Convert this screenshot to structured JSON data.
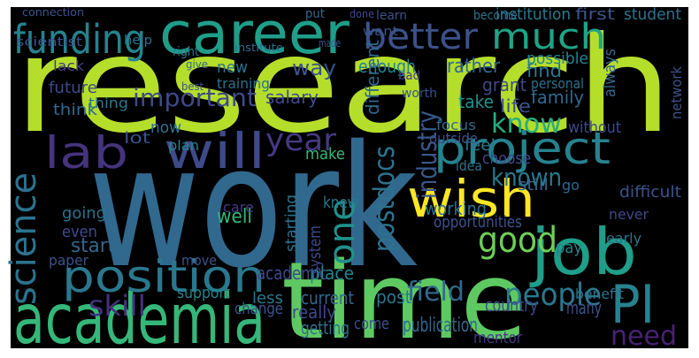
{
  "words": [
    {
      "text": "research",
      "color": "#b5de2b"
    },
    {
      "text": "work",
      "color": "#31688e"
    },
    {
      "text": "time",
      "color": "#5ec962"
    },
    {
      "text": "academia",
      "color": "#35b779"
    },
    {
      "text": "career",
      "color": "#1f9e89"
    },
    {
      "text": "funding",
      "color": "#25838e"
    },
    {
      "text": "project",
      "color": "#26828e"
    },
    {
      "text": "job",
      "color": "#1f9e89"
    },
    {
      "text": "wish",
      "color": "#fde725"
    },
    {
      "text": "will",
      "color": "#3e4a89"
    },
    {
      "text": "lab",
      "color": "#46337e"
    },
    {
      "text": "position",
      "color": "#2a788e"
    },
    {
      "text": "good",
      "color": "#6ece58"
    },
    {
      "text": "PI",
      "color": "#26828e"
    },
    {
      "text": "science",
      "color": "#2c728e"
    },
    {
      "text": "one",
      "color": "#21918c"
    },
    {
      "text": "better",
      "color": "#3b528b"
    },
    {
      "text": "much",
      "color": "#20a486"
    },
    {
      "text": "year",
      "color": "#443983"
    },
    {
      "text": "know",
      "color": "#27ad81"
    },
    {
      "text": "industry",
      "color": "#38588c"
    },
    {
      "text": "postdocs",
      "color": "#2c728e"
    },
    {
      "text": "people",
      "color": "#2a788e"
    },
    {
      "text": "field",
      "color": "#31688e"
    },
    {
      "text": "skill",
      "color": "#46307e"
    },
    {
      "text": "need",
      "color": "#482173"
    },
    {
      "text": "important",
      "color": "#3e4989"
    },
    {
      "text": "known",
      "color": "#2a788e"
    },
    {
      "text": "make",
      "color": "#35b779"
    },
    {
      "text": "want",
      "color": "#3b528b"
    },
    {
      "text": "scientist",
      "color": "#3b528b"
    },
    {
      "text": "help",
      "color": "#2c728e"
    },
    {
      "text": "lack",
      "color": "#443983"
    },
    {
      "text": "future",
      "color": "#3e4989"
    },
    {
      "text": "think",
      "color": "#31688e"
    },
    {
      "text": "thing",
      "color": "#2a788e"
    },
    {
      "text": "salary",
      "color": "#3e4989"
    },
    {
      "text": "new",
      "color": "#2c728e"
    },
    {
      "text": "way",
      "color": "#3b528b"
    },
    {
      "text": "enough",
      "color": "#25838e"
    },
    {
      "text": "rather",
      "color": "#31688e"
    },
    {
      "text": "find",
      "color": "#2a788e"
    },
    {
      "text": "grant",
      "color": "#3e4989"
    },
    {
      "text": "personal",
      "color": "#2c728e"
    },
    {
      "text": "family",
      "color": "#31688e"
    },
    {
      "text": "take",
      "color": "#21918c"
    },
    {
      "text": "life",
      "color": "#3b528b"
    },
    {
      "text": "institution",
      "color": "#2a788e"
    },
    {
      "text": "first",
      "color": "#3b528b"
    },
    {
      "text": "student",
      "color": "#2c728e"
    },
    {
      "text": "possible",
      "color": "#25838e"
    },
    {
      "text": "now",
      "color": "#2c728e"
    },
    {
      "text": "lot",
      "color": "#3b528b"
    },
    {
      "text": "plan",
      "color": "#25838e"
    },
    {
      "text": "even",
      "color": "#3e4989"
    },
    {
      "text": "going",
      "color": "#2c728e"
    },
    {
      "text": "start",
      "color": "#31688e"
    },
    {
      "text": "paper",
      "color": "#3b528b"
    },
    {
      "text": "support",
      "color": "#25838e"
    },
    {
      "text": "move",
      "color": "#3b528b"
    },
    {
      "text": "well",
      "color": "#35b779"
    },
    {
      "text": "care",
      "color": "#443983"
    },
    {
      "text": "academic",
      "color": "#3e4989"
    },
    {
      "text": "less",
      "color": "#2a788e"
    },
    {
      "text": "change",
      "color": "#3b528b"
    },
    {
      "text": "place",
      "color": "#25838e"
    },
    {
      "text": "current",
      "color": "#31688e"
    },
    {
      "text": "really",
      "color": "#3e4989"
    },
    {
      "text": "getting",
      "color": "#2c728e"
    },
    {
      "text": "come",
      "color": "#3b528b"
    },
    {
      "text": "post",
      "color": "#2a788e"
    },
    {
      "text": "publication",
      "color": "#31688e"
    },
    {
      "text": "country",
      "color": "#3e4989"
    },
    {
      "text": "benefit",
      "color": "#2c728e"
    },
    {
      "text": "many",
      "color": "#3b528b"
    },
    {
      "text": "mentor",
      "color": "#443983"
    },
    {
      "text": "pay",
      "color": "#25838e"
    },
    {
      "text": "working",
      "color": "#2c728e"
    },
    {
      "text": "opportunities",
      "color": "#3b528b"
    },
    {
      "text": "choose",
      "color": "#3e4989"
    },
    {
      "text": "still",
      "color": "#31688e"
    },
    {
      "text": "feel",
      "color": "#2a788e"
    },
    {
      "text": "difficult",
      "color": "#3b528b"
    },
    {
      "text": "never",
      "color": "#3e4989"
    },
    {
      "text": "early",
      "color": "#2c728e"
    },
    {
      "text": "go",
      "color": "#31688e"
    },
    {
      "text": "knew",
      "color": "#2a788e"
    },
    {
      "text": "without",
      "color": "#3e4989"
    },
    {
      "text": "outside",
      "color": "#3b528b"
    },
    {
      "text": "focus",
      "color": "#31688e"
    },
    {
      "text": "idea",
      "color": "#2c728e"
    },
    {
      "text": "worth",
      "color": "#3b528b"
    },
    {
      "text": "bad",
      "color": "#443983"
    },
    {
      "text": "different",
      "color": "#31688e"
    },
    {
      "text": "training",
      "color": "#2c728e"
    },
    {
      "text": "best",
      "color": "#3b528b"
    },
    {
      "text": "give",
      "color": "#31688e"
    },
    {
      "text": "right",
      "color": "#2a788e"
    },
    {
      "text": "made",
      "color": "#3b528b"
    },
    {
      "text": "put",
      "color": "#31688e"
    },
    {
      "text": "done",
      "color": "#3e4989"
    },
    {
      "text": "learn",
      "color": "#3b528b"
    },
    {
      "text": "become",
      "color": "#2c728e"
    },
    {
      "text": "connection",
      "color": "#3b528b"
    },
    {
      "text": "institute",
      "color": "#31688e"
    },
    {
      "text": "system",
      "color": "#3e4989"
    },
    {
      "text": "starting",
      "color": "#2c728e"
    },
    {
      "text": "always",
      "color": "#31688e"
    },
    {
      "text": "network",
      "color": "#3b528b"
    }
  ]
}
